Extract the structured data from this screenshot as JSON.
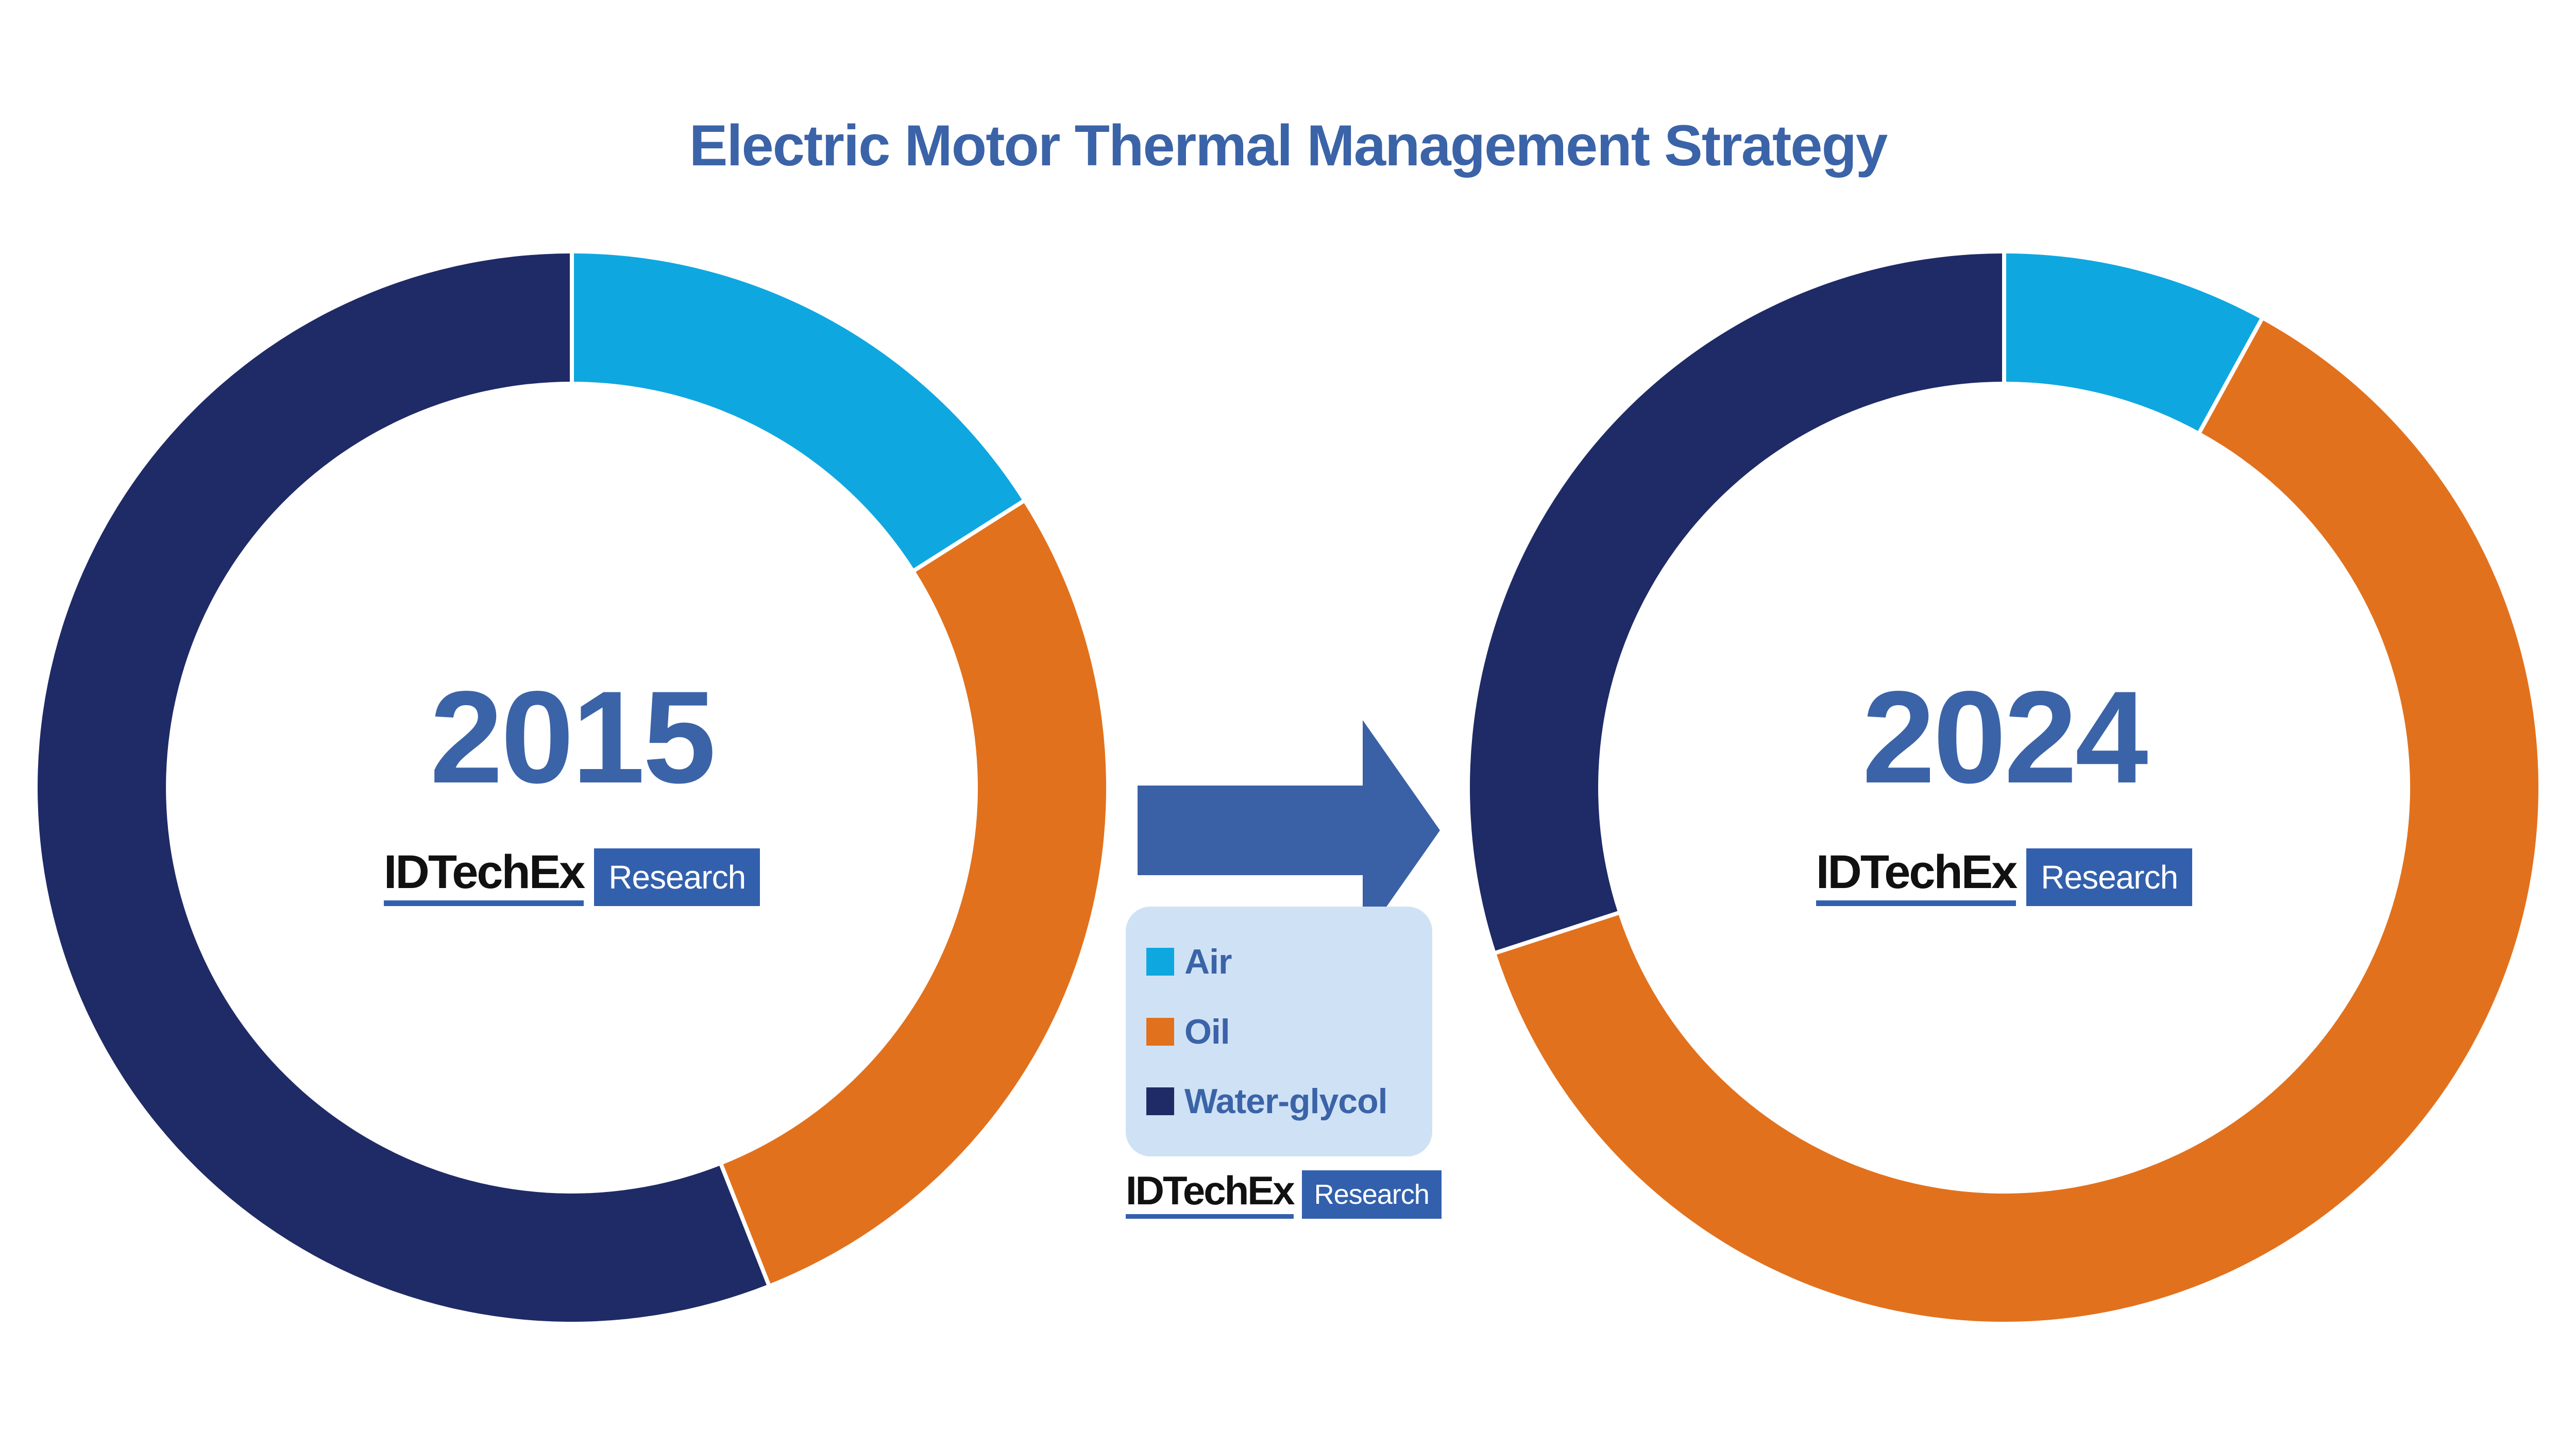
{
  "title": "Electric Motor Thermal Management Strategy",
  "brand": {
    "name": "IDTechEx",
    "sub": "Research"
  },
  "colors": {
    "background": "#FFFFFF",
    "title_text": "#3B63A8",
    "year_text": "#3B63A8",
    "legend_text": "#3B63A8",
    "legend_background": "#CFE2F5",
    "brand_wordmark_text": "#111111",
    "brand_underline": "#3360AD",
    "brand_badge_background": "#3360AD",
    "brand_badge_text": "#FFFFFF",
    "arrow": "#3A60A6",
    "segment_separator": "#FFFFFF",
    "air": "#0FA7E0",
    "oil": "#E2711D",
    "water_glycol": "#1F2B66"
  },
  "legend": {
    "items": [
      {
        "label": "Air",
        "color": "#0FA7E0"
      },
      {
        "label": "Oil",
        "color": "#E2711D"
      },
      {
        "label": "Water-glycol",
        "color": "#1F2B66"
      }
    ]
  },
  "arrow": {
    "icon": "right-arrow",
    "meaning": "change from 2015 to 2024"
  },
  "chart_data": [
    {
      "type": "pie",
      "subtype": "donut",
      "title": "2015",
      "center_label": "2015",
      "labels": [
        "Air",
        "Oil",
        "Water-glycol"
      ],
      "values": [
        16,
        28,
        56
      ],
      "value_unit": "percent (estimated from arc angles)",
      "colors": [
        "#0FA7E0",
        "#E2711D",
        "#1F2B66"
      ],
      "start_angle_deg": 0,
      "direction": "clockwise",
      "donut_hole_ratio": 0.76,
      "separator_color": "#FFFFFF",
      "legend_position": "between-charts"
    },
    {
      "type": "pie",
      "subtype": "donut",
      "title": "2024",
      "center_label": "2024",
      "labels": [
        "Air",
        "Oil",
        "Water-glycol"
      ],
      "values": [
        8,
        62,
        30
      ],
      "value_unit": "percent (estimated from arc angles)",
      "colors": [
        "#0FA7E0",
        "#E2711D",
        "#1F2B66"
      ],
      "start_angle_deg": 0,
      "direction": "clockwise",
      "donut_hole_ratio": 0.76,
      "separator_color": "#FFFFFF",
      "legend_position": "between-charts"
    }
  ]
}
